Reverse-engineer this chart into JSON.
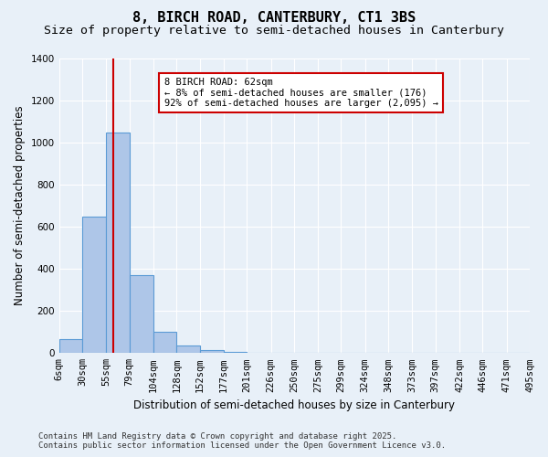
{
  "title": "8, BIRCH ROAD, CANTERBURY, CT1 3BS",
  "subtitle": "Size of property relative to semi-detached houses in Canterbury",
  "xlabel": "Distribution of semi-detached houses by size in Canterbury",
  "ylabel": "Number of semi-detached properties",
  "footer_line1": "Contains HM Land Registry data © Crown copyright and database right 2025.",
  "footer_line2": "Contains public sector information licensed under the Open Government Licence v3.0.",
  "annotation_title": "8 BIRCH ROAD: 62sqm",
  "annotation_line2": "← 8% of semi-detached houses are smaller (176)",
  "annotation_line3": "92% of semi-detached houses are larger (2,095) →",
  "property_sqm": 62,
  "bin_labels": [
    "6sqm",
    "30sqm",
    "55sqm",
    "79sqm",
    "104sqm",
    "128sqm",
    "152sqm",
    "177sqm",
    "201sqm",
    "226sqm",
    "250sqm",
    "275sqm",
    "299sqm",
    "324sqm",
    "348sqm",
    "373sqm",
    "397sqm",
    "422sqm",
    "446sqm",
    "471sqm",
    "495sqm"
  ],
  "bin_edges": [
    6,
    30,
    55,
    79,
    104,
    128,
    152,
    177,
    201,
    226,
    250,
    275,
    299,
    324,
    348,
    373,
    397,
    422,
    446,
    471,
    495
  ],
  "bar_heights": [
    65,
    650,
    1050,
    370,
    100,
    35,
    15,
    5,
    0,
    0,
    0,
    0,
    0,
    0,
    0,
    0,
    0,
    0,
    0,
    0
  ],
  "bar_color": "#aec6e8",
  "bar_edgecolor": "#5b9bd5",
  "vline_color": "#cc0000",
  "vline_x": 62,
  "ylim": [
    0,
    1400
  ],
  "yticks": [
    0,
    200,
    400,
    600,
    800,
    1000,
    1200,
    1400
  ],
  "background_color": "#e8f0f8",
  "plot_bg_color": "#e8f0f8",
  "grid_color": "#ffffff",
  "annotation_box_color": "#ffffff",
  "annotation_box_edgecolor": "#cc0000",
  "title_fontsize": 11,
  "subtitle_fontsize": 9.5,
  "axis_label_fontsize": 8.5,
  "tick_fontsize": 7.5,
  "annotation_fontsize": 7.5,
  "footer_fontsize": 6.5
}
